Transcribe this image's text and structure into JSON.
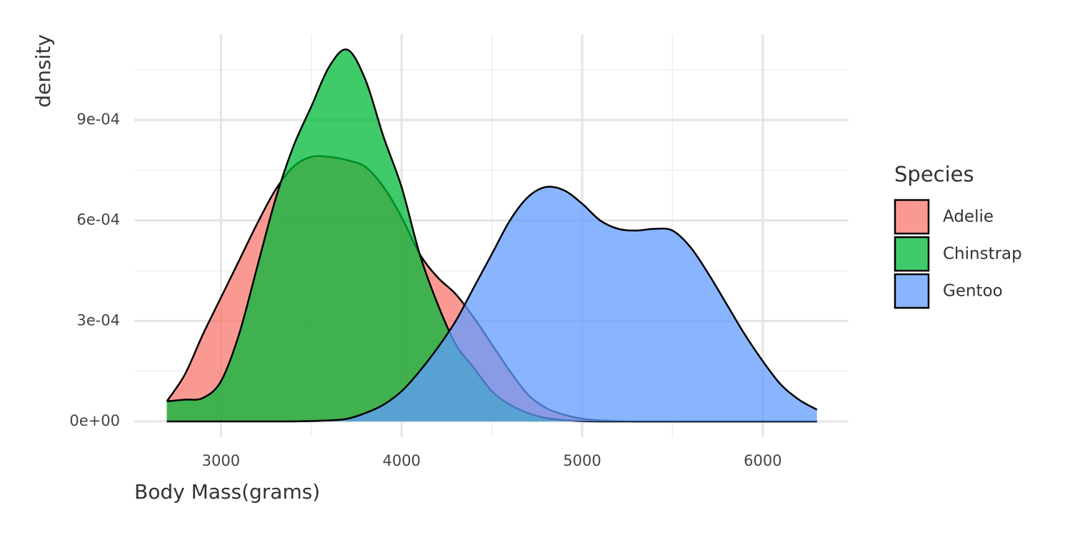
{
  "chart_data": {
    "type": "density",
    "x_label": "Body Mass(grams)",
    "y_label": "density",
    "legend_title": "Species",
    "x": [
      2700,
      2800,
      2900,
      3000,
      3100,
      3200,
      3300,
      3400,
      3500,
      3600,
      3700,
      3800,
      3900,
      4000,
      4100,
      4200,
      4300,
      4400,
      4500,
      4600,
      4700,
      4800,
      4900,
      5000,
      5100,
      5200,
      5300,
      5400,
      5500,
      5600,
      5700,
      5800,
      5900,
      6000,
      6100,
      6200,
      6300
    ],
    "series": [
      {
        "name": "Adelie",
        "color": "#F8766D",
        "values": [
          6e-05,
          0.00014,
          0.00026,
          0.00037,
          0.00048,
          0.00059,
          0.00069,
          0.00076,
          0.00079,
          0.00079,
          0.00078,
          0.00076,
          0.0007,
          0.00061,
          0.0005,
          0.00043,
          0.00038,
          0.00031,
          0.00023,
          0.00015,
          8e-05,
          4e-05,
          2e-05,
          8e-06,
          3e-06,
          1e-06,
          0,
          0,
          0,
          0,
          0,
          0,
          0,
          0,
          0,
          0,
          0
        ]
      },
      {
        "name": "Chinstrap",
        "color": "#00BA38",
        "values": [
          6e-05,
          6.5e-05,
          7e-05,
          0.00012,
          0.00026,
          0.00046,
          0.00066,
          0.00082,
          0.00094,
          0.00106,
          0.00111,
          0.00102,
          0.00085,
          0.0007,
          0.0005,
          0.00035,
          0.00023,
          0.00016,
          9e-05,
          5e-05,
          2.5e-05,
          1e-05,
          4e-06,
          1e-06,
          0,
          0,
          0,
          0,
          0,
          0,
          0,
          0,
          0,
          0,
          0,
          0,
          0
        ]
      },
      {
        "name": "Gentoo",
        "color": "#619CFF",
        "values": [
          0,
          0,
          0,
          0,
          0,
          0,
          0,
          0,
          1e-06,
          3e-06,
          8e-06,
          2.5e-05,
          5e-05,
          9e-05,
          0.00015,
          0.00022,
          0.0003,
          0.0004,
          0.0005,
          0.0006,
          0.00067,
          0.0007,
          0.00069,
          0.00065,
          0.0006,
          0.000575,
          0.00057,
          0.000575,
          0.00057,
          0.00052,
          0.00044,
          0.00035,
          0.00026,
          0.00018,
          0.00011,
          6.5e-05,
          3.5e-05
        ]
      }
    ],
    "xlim": [
      2520,
      6475
    ],
    "ylim": [
      -4.7e-05,
      0.001156
    ],
    "xticks": [
      3000,
      4000,
      5000,
      6000
    ],
    "yticks": [
      {
        "value": 0,
        "label": "0e+00"
      },
      {
        "value": 0.0003,
        "label": "3e-04"
      },
      {
        "value": 0.0006,
        "label": "6e-04"
      },
      {
        "value": 0.0009,
        "label": "9e-04"
      }
    ],
    "xminor": [
      3500,
      4500,
      5500
    ],
    "yminor": [
      0.00015,
      0.00045,
      0.00075,
      0.00105
    ],
    "grid": true,
    "legend": "right",
    "alpha": 0.75
  }
}
